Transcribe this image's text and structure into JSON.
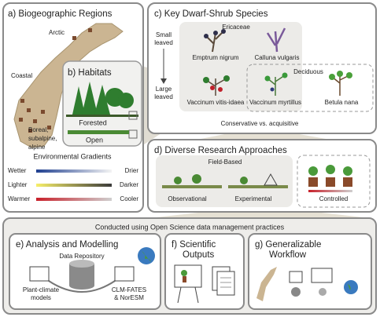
{
  "panel_a": {
    "title": "a) Biogeographic Regions",
    "regions": [
      "Arctic",
      "Coastal"
    ],
    "boreal_lines": [
      "Boreal,",
      "subalpine,",
      "alpine"
    ]
  },
  "panel_b": {
    "title": "b) Habitats",
    "habitats": [
      "Forested",
      "Open"
    ]
  },
  "gradients": {
    "title": "Environmental Gradients",
    "rows": [
      {
        "left": "Wetter",
        "right": "Drier"
      },
      {
        "left": "Lighter",
        "right": "Darker"
      },
      {
        "left": "Warmer",
        "right": "Cooler"
      }
    ]
  },
  "panel_c": {
    "title": "c) Key Dwarf-Shrub Species",
    "axis_top": [
      "Small",
      "leaved"
    ],
    "axis_bottom": [
      "Large",
      "leaved"
    ],
    "groups": [
      "Ericaceae",
      "Deciduous"
    ],
    "species": [
      "Emptrum nigrum",
      "Calluna vulgaris",
      "Vaccinum vitis-idaea",
      "Vaccinum myrtillus",
      "Betula nana"
    ],
    "footer": "Conservative vs. acquisitive"
  },
  "panel_d": {
    "title": "d) Diverse Research Approaches",
    "field": "Field-Based",
    "approaches": [
      "Observational",
      "Experimental",
      "Controlled"
    ]
  },
  "bottom": {
    "title": "Conducted using Open Science data management practices",
    "panel_e": {
      "title": "e) Analysis and Modelling",
      "repository": "Data Repository",
      "left_lines": [
        "Plant-climate",
        "models"
      ],
      "right_lines": [
        "CLM-FATES",
        "& NorESM"
      ]
    },
    "panel_f": {
      "title_lines": [
        "f) Scientific",
        "Outputs"
      ]
    },
    "panel_g": {
      "title_lines": [
        "g) Generalizable",
        "Workflow"
      ]
    }
  }
}
